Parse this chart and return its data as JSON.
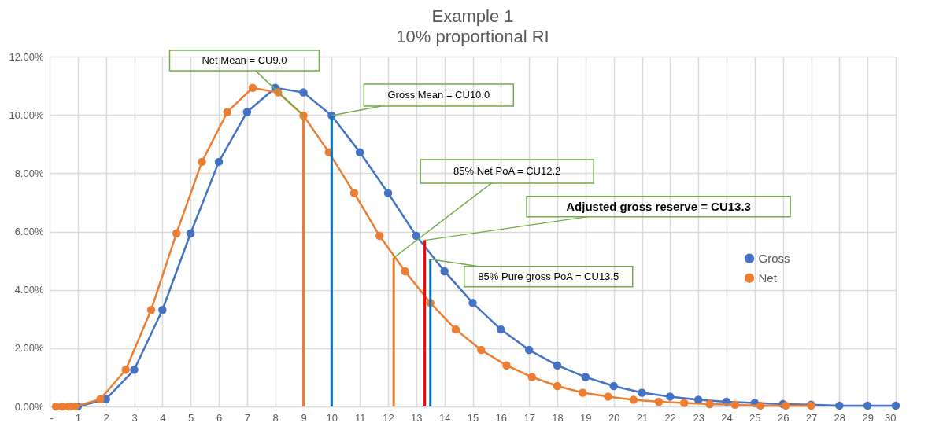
{
  "chart_data": {
    "type": "line",
    "title": "Example 1",
    "subtitle": "10% proportional RI",
    "xlim": [
      0,
      30
    ],
    "xticks": [
      {
        "value": 0,
        "label": "-"
      },
      1,
      2,
      3,
      4,
      5,
      6,
      7,
      8,
      9,
      10,
      11,
      12,
      13,
      14,
      15,
      16,
      17,
      18,
      19,
      20,
      21,
      22,
      23,
      24,
      25,
      26,
      27,
      28,
      29,
      30
    ],
    "ylim": [
      0,
      12
    ],
    "yticks": [
      {
        "value": 0,
        "label": "0.00%"
      },
      {
        "value": 2,
        "label": "2.00%"
      },
      {
        "value": 4,
        "label": "4.00%"
      },
      {
        "value": 6,
        "label": "6.00%"
      },
      {
        "value": 8,
        "label": "8.00%"
      },
      {
        "value": 10,
        "label": "10.00%"
      },
      {
        "value": 12,
        "label": "12.00%"
      }
    ],
    "grid": true,
    "legend": "right",
    "marker": "circle",
    "line_style": "solid",
    "series": [
      {
        "name": "Gross",
        "color": "#4472c4",
        "x": [
          0.75,
          1,
          2,
          3,
          4,
          5,
          6,
          7,
          8,
          9,
          10,
          11,
          12,
          13,
          14,
          15,
          16,
          17,
          18,
          19,
          20,
          21,
          22,
          23,
          24,
          25,
          26,
          27,
          28,
          29,
          30
        ],
        "values": [
          0,
          0,
          0.25,
          1.26,
          3.31,
          5.94,
          8.39,
          10.1,
          10.93,
          10.77,
          9.98,
          8.72,
          7.32,
          5.85,
          4.64,
          3.55,
          2.64,
          1.94,
          1.41,
          1.01,
          0.7,
          0.47,
          0.34,
          0.23,
          0.16,
          0.12,
          0.08,
          0.06,
          0.03,
          0.03,
          0.03
        ]
      },
      {
        "name": "Net",
        "color": "#ed7d31",
        "x": [
          0.225,
          0.45,
          0.675,
          0.9,
          1.8,
          2.7,
          3.6,
          4.5,
          5.4,
          6.3,
          7.2,
          8.1,
          9,
          9.9,
          10.8,
          11.7,
          12.6,
          13.5,
          14.4,
          15.3,
          16.2,
          17.1,
          18,
          18.9,
          19.8,
          20.7,
          21.6,
          22.5,
          23.4,
          24.3,
          25.2,
          26.1,
          27
        ],
        "values": [
          0,
          0,
          0,
          0,
          0.25,
          1.26,
          3.31,
          5.94,
          8.39,
          10.1,
          10.93,
          10.77,
          9.98,
          8.72,
          7.32,
          5.85,
          4.64,
          3.55,
          2.64,
          1.94,
          1.41,
          1.01,
          0.7,
          0.47,
          0.34,
          0.23,
          0.16,
          0.12,
          0.08,
          0.06,
          0.03,
          0.03,
          0.03
        ]
      },
      {
        "color": "#ed7d31",
        "marker": "none",
        "x": [
          9,
          9
        ],
        "values": [
          0,
          9.98
        ]
      },
      {
        "color": "#0070c0",
        "marker": "none",
        "x": [
          10,
          10
        ],
        "values": [
          0,
          9.98
        ]
      },
      {
        "color": "#ed7d31",
        "marker": "none",
        "x": [
          12.2,
          12.2
        ],
        "values": [
          0,
          5.1
        ]
      },
      {
        "color": "#ff0000",
        "marker": "none",
        "x": [
          13.3,
          13.3
        ],
        "values": [
          0,
          5.7
        ]
      },
      {
        "color": "#0070c0",
        "marker": "none",
        "x": [
          13.5,
          13.5
        ],
        "values": [
          0,
          5.05
        ]
      }
    ],
    "annotations": [
      {
        "text": "Net Mean = CU9.0",
        "x": 9,
        "y": 9.98
      },
      {
        "text": "Gross Mean = CU10.0",
        "x": 10,
        "y": 9.98
      },
      {
        "text": "85% Net PoA = CU12.2",
        "x": 12.2,
        "y": 5.1
      },
      {
        "text": "Adjusted gross reserve = CU13.3",
        "x": 13.3,
        "y": 5.7
      },
      {
        "text": "85% Pure gross PoA = CU13.5",
        "x": 13.5,
        "y": 5.05
      }
    ]
  }
}
